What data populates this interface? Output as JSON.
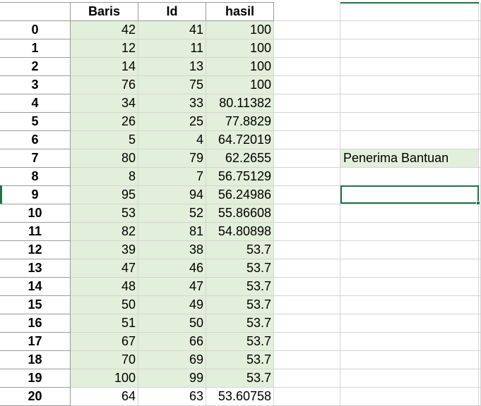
{
  "headers": [
    "",
    "Baris",
    "Id",
    "hasil"
  ],
  "rows": [
    {
      "index": "0",
      "baris": "42",
      "id": "41",
      "hasil": "100"
    },
    {
      "index": "1",
      "baris": "12",
      "id": "11",
      "hasil": "100"
    },
    {
      "index": "2",
      "baris": "14",
      "id": "13",
      "hasil": "100"
    },
    {
      "index": "3",
      "baris": "76",
      "id": "75",
      "hasil": "100"
    },
    {
      "index": "4",
      "baris": "34",
      "id": "33",
      "hasil": "80.11382"
    },
    {
      "index": "5",
      "baris": "26",
      "id": "25",
      "hasil": "77.8829"
    },
    {
      "index": "6",
      "baris": "5",
      "id": "4",
      "hasil": "64.72019"
    },
    {
      "index": "7",
      "baris": "80",
      "id": "79",
      "hasil": "62.2655"
    },
    {
      "index": "8",
      "baris": "8",
      "id": "7",
      "hasil": "56.75129"
    },
    {
      "index": "9",
      "baris": "95",
      "id": "94",
      "hasil": "56.24986"
    },
    {
      "index": "10",
      "baris": "53",
      "id": "52",
      "hasil": "55.86608"
    },
    {
      "index": "11",
      "baris": "82",
      "id": "81",
      "hasil": "54.80898"
    },
    {
      "index": "12",
      "baris": "39",
      "id": "38",
      "hasil": "53.7"
    },
    {
      "index": "13",
      "baris": "47",
      "id": "46",
      "hasil": "53.7"
    },
    {
      "index": "14",
      "baris": "48",
      "id": "47",
      "hasil": "53.7"
    },
    {
      "index": "15",
      "baris": "50",
      "id": "49",
      "hasil": "53.7"
    },
    {
      "index": "16",
      "baris": "51",
      "id": "50",
      "hasil": "53.7"
    },
    {
      "index": "17",
      "baris": "67",
      "id": "66",
      "hasil": "53.7"
    },
    {
      "index": "18",
      "baris": "70",
      "id": "69",
      "hasil": "53.7"
    },
    {
      "index": "19",
      "baris": "100",
      "id": "99",
      "hasil": "53.7"
    },
    {
      "index": "20",
      "baris": "64",
      "id": "63",
      "hasil": "53.60758"
    }
  ],
  "side_label": "Penerima Bantuan",
  "colors": {
    "highlight": "#e2efda",
    "selection": "#217346",
    "gridline": "#d4d4d4"
  }
}
